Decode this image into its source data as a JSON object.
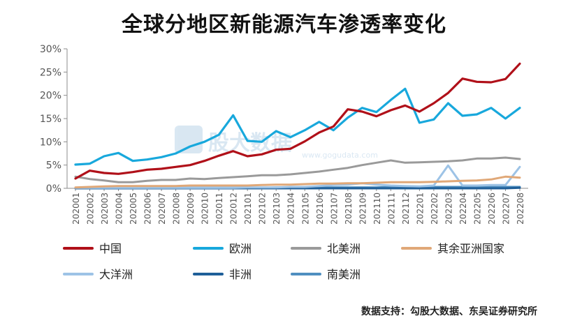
{
  "chart_data": {
    "type": "line",
    "title": "全球分地区新能源汽车渗透率变化",
    "xlabel": "",
    "ylabel": "",
    "ylim": [
      0,
      30
    ],
    "yticks": [
      "0%",
      "5%",
      "10%",
      "15%",
      "20%",
      "25%",
      "30%"
    ],
    "grid": false,
    "legend_position": "bottom",
    "categories": [
      "202001",
      "202002",
      "202003",
      "202004",
      "202005",
      "202006",
      "202007",
      "202008",
      "202009",
      "202010",
      "202011",
      "202012",
      "202101",
      "202102",
      "202103",
      "202104",
      "202105",
      "202106",
      "202107",
      "202108",
      "202109",
      "202110",
      "202111",
      "202112",
      "202201",
      "202202",
      "202203",
      "202204",
      "202205",
      "202206",
      "202207",
      "202208"
    ],
    "series": [
      {
        "name": "中国",
        "color": "#b01019",
        "values": [
          2.1,
          3.8,
          3.3,
          3.1,
          3.5,
          4.0,
          4.2,
          4.6,
          5.0,
          5.9,
          7.0,
          8.0,
          6.9,
          7.3,
          8.3,
          8.5,
          10.1,
          12.0,
          13.3,
          17.0,
          16.5,
          15.5,
          16.8,
          17.8,
          16.5,
          18.3,
          20.5,
          23.6,
          22.9,
          22.8,
          23.5,
          26.8
        ]
      },
      {
        "name": "欧洲",
        "color": "#18a8dc",
        "values": [
          5.1,
          5.3,
          6.9,
          7.6,
          5.9,
          6.2,
          6.7,
          7.5,
          9.0,
          10.0,
          11.5,
          15.7,
          10.2,
          10.0,
          12.3,
          11.0,
          12.5,
          14.3,
          12.5,
          15.2,
          17.3,
          16.4,
          19.0,
          21.4,
          14.1,
          14.8,
          18.3,
          15.6,
          15.9,
          17.3,
          15.0,
          17.3
        ]
      },
      {
        "name": "北美洲",
        "color": "#9a9a9a",
        "values": [
          2.5,
          2.0,
          1.7,
          1.3,
          1.3,
          1.6,
          1.8,
          1.8,
          2.1,
          2.0,
          2.2,
          2.4,
          2.6,
          2.8,
          2.8,
          3.0,
          3.3,
          3.6,
          4.0,
          4.4,
          5.0,
          5.5,
          6.0,
          5.5,
          5.6,
          5.7,
          5.8,
          6.0,
          6.4,
          6.4,
          6.6,
          6.3
        ]
      },
      {
        "name": "其余亚洲国家",
        "color": "#e0a878",
        "values": [
          0.2,
          0.3,
          0.4,
          0.5,
          0.5,
          0.5,
          0.5,
          0.5,
          0.6,
          0.6,
          0.6,
          0.6,
          0.6,
          0.7,
          0.8,
          0.8,
          0.9,
          1.0,
          1.0,
          1.1,
          1.1,
          1.2,
          1.3,
          1.3,
          1.3,
          1.4,
          1.5,
          1.6,
          1.7,
          1.9,
          2.5,
          2.3
        ]
      },
      {
        "name": "大洋洲",
        "color": "#9dc3e6",
        "values": [
          0.1,
          0.1,
          0.1,
          0.1,
          0.1,
          0.1,
          0.1,
          0.1,
          0.1,
          0.1,
          0.1,
          0.1,
          0.2,
          0.2,
          0.2,
          0.3,
          0.3,
          0.5,
          0.7,
          0.8,
          1.1,
          0.8,
          0.6,
          0.5,
          0.4,
          0.6,
          4.9,
          0.6,
          0.6,
          0.7,
          0.7,
          4.6
        ]
      },
      {
        "name": "非洲",
        "color": "#1f5f99",
        "values": [
          0.0,
          0.0,
          0.0,
          0.0,
          0.0,
          0.0,
          0.0,
          0.0,
          0.0,
          0.0,
          0.0,
          0.0,
          0.0,
          0.0,
          0.0,
          0.0,
          0.0,
          0.0,
          0.0,
          0.0,
          0.0,
          0.0,
          0.0,
          0.0,
          0.0,
          0.0,
          0.0,
          0.0,
          0.0,
          0.0,
          0.0,
          0.1
        ]
      },
      {
        "name": "南美洲",
        "color": "#4f8fc0",
        "values": [
          0.1,
          0.1,
          0.1,
          0.1,
          0.1,
          0.1,
          0.1,
          0.1,
          0.1,
          0.1,
          0.1,
          0.1,
          0.1,
          0.1,
          0.2,
          0.2,
          0.2,
          0.2,
          0.2,
          0.2,
          0.2,
          0.2,
          0.3,
          0.3,
          0.3,
          0.3,
          0.3,
          0.3,
          0.3,
          0.3,
          0.3,
          0.3
        ]
      }
    ]
  },
  "watermark": {
    "name": "股大数据",
    "url": "www.gogudata.com"
  },
  "source": "数据支持：勾股大数据、东吴证券研究所"
}
